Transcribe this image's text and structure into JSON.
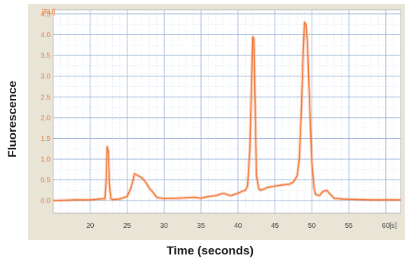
{
  "chart_data": {
    "type": "line",
    "title": "",
    "xlabel": "Time (seconds)",
    "ylabel": "Fluorescence",
    "x_unit": "[s]",
    "y_unit": "[FU]",
    "xlim": [
      15,
      62
    ],
    "ylim": [
      -0.3,
      4.6
    ],
    "x_ticks": [
      20,
      25,
      30,
      35,
      40,
      45,
      50,
      55,
      60
    ],
    "y_ticks": [
      0.0,
      0.5,
      1.0,
      1.5,
      2.0,
      2.5,
      3.0,
      3.5,
      4.0,
      4.5
    ],
    "grid": true,
    "line_color": "#f07838",
    "series": [
      {
        "x": [
          15,
          18,
          20,
          22.0,
          22.2,
          22.3,
          22.45,
          22.6,
          22.8,
          23,
          24,
          25,
          25.5,
          25.8,
          26,
          26.5,
          27,
          27.5,
          28,
          28.5,
          29,
          30,
          32,
          34,
          35,
          36,
          37,
          38,
          39,
          40,
          40.5,
          41,
          41.3,
          41.6,
          41.8,
          42,
          42.15,
          42.3,
          42.5,
          42.8,
          43,
          43.5,
          44,
          45,
          46,
          47,
          47.5,
          48,
          48.3,
          48.6,
          48.8,
          49,
          49.2,
          49.4,
          49.6,
          49.8,
          50,
          50.3,
          50.5,
          51,
          51.5,
          52,
          52.5,
          53,
          54,
          56,
          58,
          60,
          62
        ],
        "y": [
          0.0,
          0.02,
          0.02,
          0.05,
          0.6,
          1.3,
          1.2,
          0.4,
          0.05,
          0.03,
          0.04,
          0.1,
          0.3,
          0.5,
          0.65,
          0.6,
          0.55,
          0.45,
          0.3,
          0.2,
          0.08,
          0.05,
          0.06,
          0.08,
          0.06,
          0.1,
          0.12,
          0.18,
          0.12,
          0.18,
          0.22,
          0.25,
          0.35,
          1.2,
          2.6,
          3.95,
          3.9,
          2.5,
          0.6,
          0.3,
          0.25,
          0.28,
          0.32,
          0.35,
          0.38,
          0.4,
          0.45,
          0.6,
          1.0,
          2.3,
          3.5,
          4.3,
          4.25,
          3.8,
          2.8,
          1.8,
          0.9,
          0.3,
          0.15,
          0.12,
          0.22,
          0.25,
          0.15,
          0.06,
          0.04,
          0.03,
          0.02,
          0.02,
          0.02
        ]
      }
    ]
  }
}
